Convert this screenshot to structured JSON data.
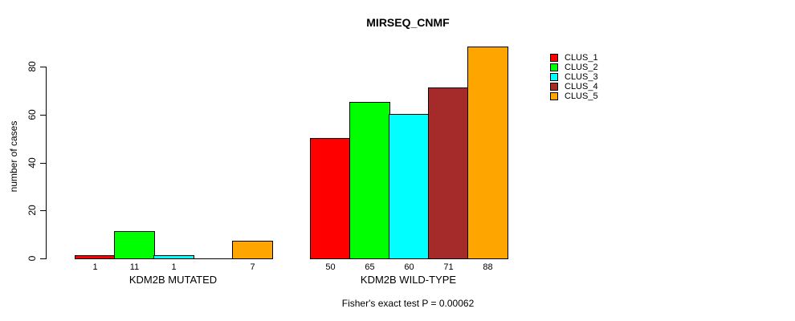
{
  "chart_data": {
    "type": "bar",
    "title": "MIRSEQ_CNMF",
    "xlabel": "",
    "ylabel": "number of cases",
    "categories": [
      "KDM2B MUTATED",
      "KDM2B WILD-TYPE"
    ],
    "series": [
      {
        "name": "CLUS_1",
        "color": "#FF0000",
        "values": [
          1,
          50
        ]
      },
      {
        "name": "CLUS_2",
        "color": "#00FF00",
        "values": [
          11,
          65
        ]
      },
      {
        "name": "CLUS_3",
        "color": "#00FFFF",
        "values": [
          1,
          60
        ]
      },
      {
        "name": "CLUS_4",
        "color": "#A52A2A",
        "values": [
          0,
          71
        ]
      },
      {
        "name": "CLUS_5",
        "color": "#FFA500",
        "values": [
          7,
          88
        ]
      }
    ],
    "bar_value_labels": {
      "KDM2B MUTATED": [
        "1",
        "11",
        "1",
        "",
        "7"
      ],
      "KDM2B WILD-TYPE": [
        "50",
        "65",
        "60",
        "71",
        "88"
      ]
    },
    "yticks": [
      0,
      20,
      40,
      60,
      80
    ],
    "ylim": [
      0,
      88
    ],
    "grid": false,
    "legend_position": "top-right",
    "annotation": "Fisher's exact test P = 0.00062",
    "colors": {
      "background": "#FFFFFF",
      "bar_border": "#000000",
      "text": "#000000"
    }
  }
}
